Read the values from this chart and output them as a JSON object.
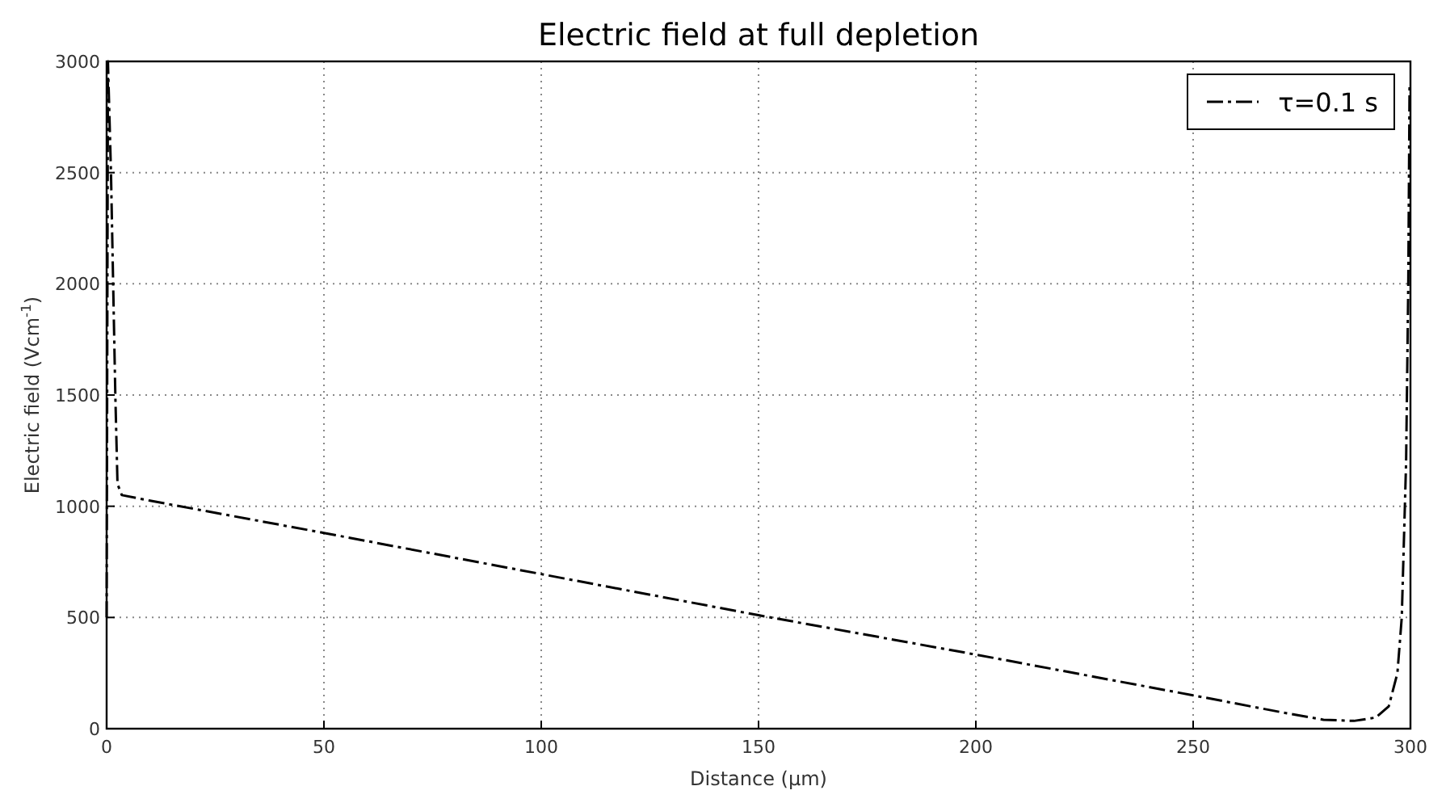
{
  "chart_data": {
    "type": "line",
    "title": "Electric field at full depletion",
    "xlabel": "Distance (µm)",
    "ylabel": "Electric field (Vcm$^{-1}$)",
    "xlim": [
      0,
      300
    ],
    "xticks": [
      0,
      50,
      100,
      150,
      200,
      250,
      300
    ],
    "ylim": [
      0,
      3000
    ],
    "yticks": [
      0,
      500,
      1000,
      1500,
      2000,
      2500,
      3000
    ],
    "grid": true,
    "legend": "top right",
    "line_style": "dashdot",
    "series": [
      {
        "name": "τ=0.1 s",
        "color": "#000000",
        "x": [
          0,
          0.3,
          1,
          2,
          2.5,
          3.5,
          10,
          50,
          100,
          150,
          200,
          250,
          270,
          280,
          287,
          292,
          295,
          297,
          298,
          299,
          299.5,
          299.8
        ],
        "values": [
          500,
          3000,
          2500,
          1500,
          1100,
          1050,
          1025,
          880,
          695,
          510,
          333,
          150,
          75,
          40,
          35,
          50,
          100,
          250,
          500,
          1200,
          2000,
          2900
        ]
      }
    ]
  }
}
